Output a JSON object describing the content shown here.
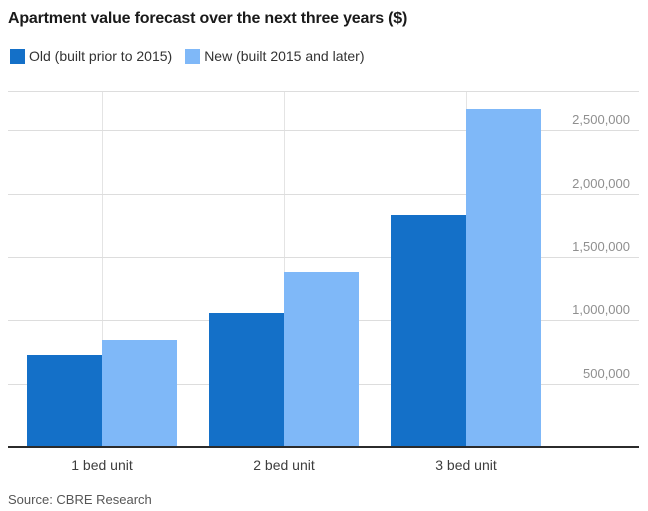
{
  "title": "Apartment value forecast over the next three years ($)",
  "legend": {
    "items": [
      {
        "label": "Old (built prior to 2015)",
        "color": "#1470C8"
      },
      {
        "label": "New (built 2015 and later)",
        "color": "#7FB8F8"
      }
    ]
  },
  "source": "Source: CBRE Research",
  "colors": {
    "old_series": "#1470C8",
    "new_series": "#7FB8F8",
    "gridline": "#dddddd",
    "vertical_gridline": "#e4e4e4",
    "axis_line": "#2b2b2b",
    "tick_label": "#8f8f8f",
    "title_text": "#1a1a1a"
  },
  "chart_data": {
    "type": "bar",
    "title": "Apartment value forecast over the next three years ($)",
    "categories": [
      "1 bed unit",
      "2 bed unit",
      "3 bed unit"
    ],
    "series": [
      {
        "name": "Old (built prior to 2015)",
        "color": "#1470C8",
        "values": [
          730000,
          1060000,
          1835000
        ]
      },
      {
        "name": "New (built 2015 and later)",
        "color": "#7FB8F8",
        "values": [
          845000,
          1380000,
          2665000
        ]
      }
    ],
    "xlabel": "",
    "ylabel": "",
    "ylim": [
      0,
      2810000
    ],
    "yticks": [
      500000,
      1000000,
      1500000,
      2000000,
      2500000
    ],
    "ytick_labels": [
      "500,000",
      "1,000,000",
      "1,500,000",
      "2,000,000",
      "2,500,000"
    ],
    "ytick_side": "right",
    "grid": true,
    "legend_position": "top-left",
    "source": "Source: CBRE Research"
  }
}
